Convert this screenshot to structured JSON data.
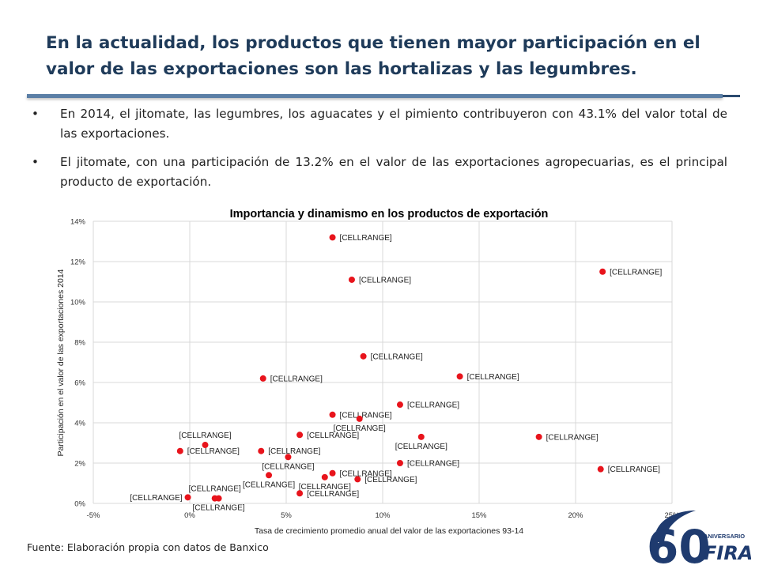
{
  "header": {
    "title": "En la actualidad, los productos que tienen mayor participación en el valor de las exportaciones son las hortalizas y las legumbres."
  },
  "bullets": [
    "En 2014, el jitomate, las legumbres, los aguacates y el pimiento contribuyeron con 43.1% del valor total de las exportaciones.",
    "El jitomate, con una participación de 13.2% en el valor de las exportaciones agropecuarias, es el principal producto de exportación."
  ],
  "bullet_glyph": "•",
  "chart_data": {
    "type": "scatter",
    "title": "Importancia y dinamismo en los productos de exportación",
    "xlabel": "Tasa de crecimiento promedio anual del valor de las exportaciones 93-14",
    "ylabel": "Participación en el valor de las exportaciones 2014",
    "xlim": [
      -0.05,
      0.25
    ],
    "ylim": [
      0,
      0.14
    ],
    "x_ticks": [
      "-5%",
      "0%",
      "5%",
      "10%",
      "15%",
      "20%",
      "25%"
    ],
    "y_ticks": [
      "0%",
      "2%",
      "4%",
      "6%",
      "8%",
      "10%",
      "12%",
      "14%"
    ],
    "grid": "vertical and horizontal",
    "marker_color": "#e8141c",
    "point_label": "[CELLRANGE]",
    "points": [
      {
        "x": 0.074,
        "y": 0.132,
        "label_pos": "right"
      },
      {
        "x": 0.084,
        "y": 0.111,
        "label_pos": "right"
      },
      {
        "x": 0.214,
        "y": 0.115,
        "label_pos": "right"
      },
      {
        "x": 0.09,
        "y": 0.073,
        "label_pos": "right"
      },
      {
        "x": 0.14,
        "y": 0.063,
        "label_pos": "right"
      },
      {
        "x": 0.038,
        "y": 0.062,
        "label_pos": "right"
      },
      {
        "x": 0.109,
        "y": 0.049,
        "label_pos": "right"
      },
      {
        "x": 0.074,
        "y": 0.044,
        "label_pos": "right"
      },
      {
        "x": 0.088,
        "y": 0.042,
        "label_pos": "below"
      },
      {
        "x": 0.057,
        "y": 0.034,
        "label_pos": "right"
      },
      {
        "x": 0.12,
        "y": 0.033,
        "label_pos": "below"
      },
      {
        "x": 0.181,
        "y": 0.033,
        "label_pos": "right"
      },
      {
        "x": 0.008,
        "y": 0.029,
        "label_pos": "above"
      },
      {
        "x": -0.005,
        "y": 0.026,
        "label_pos": "right"
      },
      {
        "x": 0.037,
        "y": 0.026,
        "label_pos": "right"
      },
      {
        "x": 0.051,
        "y": 0.023,
        "label_pos": "below"
      },
      {
        "x": 0.109,
        "y": 0.02,
        "label_pos": "right"
      },
      {
        "x": 0.074,
        "y": 0.015,
        "label_pos": "right"
      },
      {
        "x": 0.213,
        "y": 0.017,
        "label_pos": "right"
      },
      {
        "x": 0.041,
        "y": 0.014,
        "label_pos": "below"
      },
      {
        "x": 0.07,
        "y": 0.013,
        "label_pos": "below"
      },
      {
        "x": 0.087,
        "y": 0.012,
        "label_pos": "right"
      },
      {
        "x": 0.057,
        "y": 0.005,
        "label_pos": "right"
      },
      {
        "x": -0.001,
        "y": 0.003,
        "label_pos": "left"
      },
      {
        "x": 0.013,
        "y": 0.0025,
        "label_pos": "above"
      },
      {
        "x": 0.015,
        "y": 0.0025,
        "label_pos": "below"
      }
    ]
  },
  "footer": {
    "source": "Fuente: Elaboración propia con datos de Banxico"
  },
  "logo": {
    "digits": "60",
    "line1": "ANIVERSARIO",
    "brand": "FIRA",
    "color": "#1f3b6f"
  }
}
